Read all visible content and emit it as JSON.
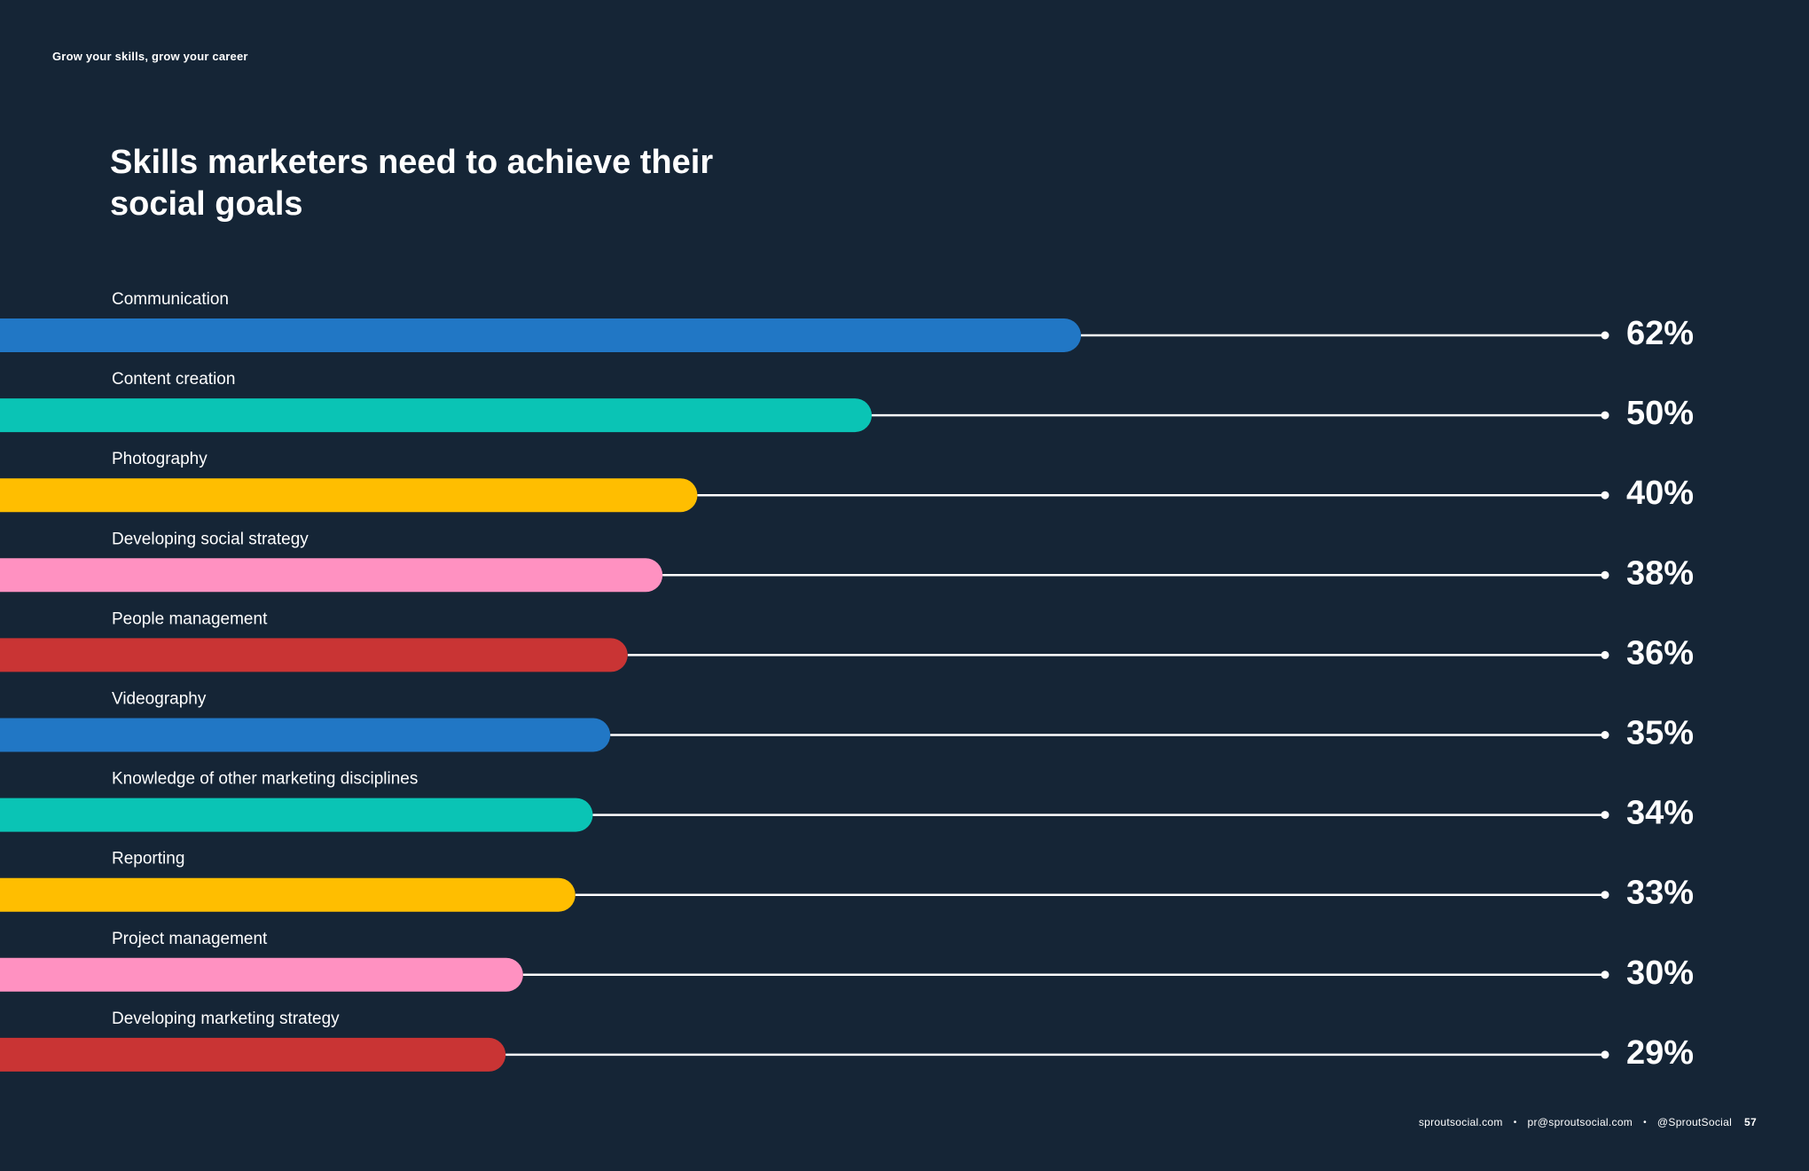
{
  "header": {
    "tag": "Grow your skills, grow your career"
  },
  "footer": {
    "website": "sproutsocial.com",
    "separator": "•",
    "email": "pr@sproutsocial.com",
    "handle": "@SproutSocial",
    "page_number": "57"
  },
  "colors": {
    "background": "#152536",
    "blue": "#2177c5",
    "teal": "#0ac4b5",
    "yellow": "#ffbe00",
    "pink": "#ff91c1",
    "red": "#c93434",
    "line": "#ffffff"
  },
  "chart_data": {
    "type": "bar",
    "orientation": "horizontal",
    "title": "Skills marketers need to achieve their social goals",
    "categories": [
      "Communication",
      "Content creation",
      "Photography",
      "Developing social strategy",
      "People management",
      "Videography",
      "Knowledge of other marketing disciplines",
      "Reporting",
      "Project management",
      "Developing marketing strategy"
    ],
    "values": [
      62,
      50,
      40,
      38,
      36,
      35,
      34,
      33,
      30,
      29
    ],
    "value_labels": [
      "62%",
      "50%",
      "40%",
      "38%",
      "36%",
      "35%",
      "34%",
      "33%",
      "30%",
      "29%"
    ],
    "bar_colors": [
      "#2177c5",
      "#0ac4b5",
      "#ffbe00",
      "#ff91c1",
      "#c93434",
      "#2177c5",
      "#0ac4b5",
      "#ffbe00",
      "#ff91c1",
      "#c93434"
    ],
    "unit": "%",
    "legend": "none",
    "grid": false
  }
}
